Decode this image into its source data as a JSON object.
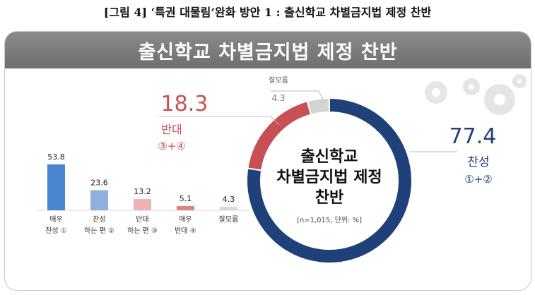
{
  "caption": "[그림 4] ‘특권 대물림’완화 방안 1 : 출신학교 차별금지법 제정 찬반",
  "banner_title": "출신학교 차별금지법 제정 찬반",
  "colors": {
    "agree": "#1f4079",
    "oppose": "#c85055",
    "dont_know": "#d3d3d3",
    "bar_strong_agree": "#4a85cf",
    "bar_agree": "#8fb0dc",
    "bar_oppose": "#efb2b4",
    "bar_strong_oppose": "#e08387",
    "bar_dont_know": "#d9d9d9"
  },
  "chart_data": [
    {
      "type": "pie",
      "title": "출신학교 차별금지법 제정 찬반",
      "note": "[n=1,015, 단위: %]",
      "slices": [
        {
          "name": "찬성",
          "value": 77.4,
          "sub": "①+②"
        },
        {
          "name": "반대",
          "value": 18.3,
          "sub": "③+④"
        },
        {
          "name": "잘모름",
          "value": 4.3
        }
      ]
    },
    {
      "type": "bar",
      "categories": [
        [
          "매우",
          "찬성 ①"
        ],
        [
          "찬성",
          "하는 편 ②"
        ],
        [
          "반대",
          "하는 편 ③"
        ],
        [
          "매우",
          "반대 ④"
        ],
        [
          "잘모름"
        ]
      ],
      "values": [
        53.8,
        23.6,
        13.2,
        5.1,
        4.3
      ],
      "value_labels": [
        "53.8",
        "23.6",
        "13.2",
        "5.1",
        "4.3"
      ]
    }
  ]
}
